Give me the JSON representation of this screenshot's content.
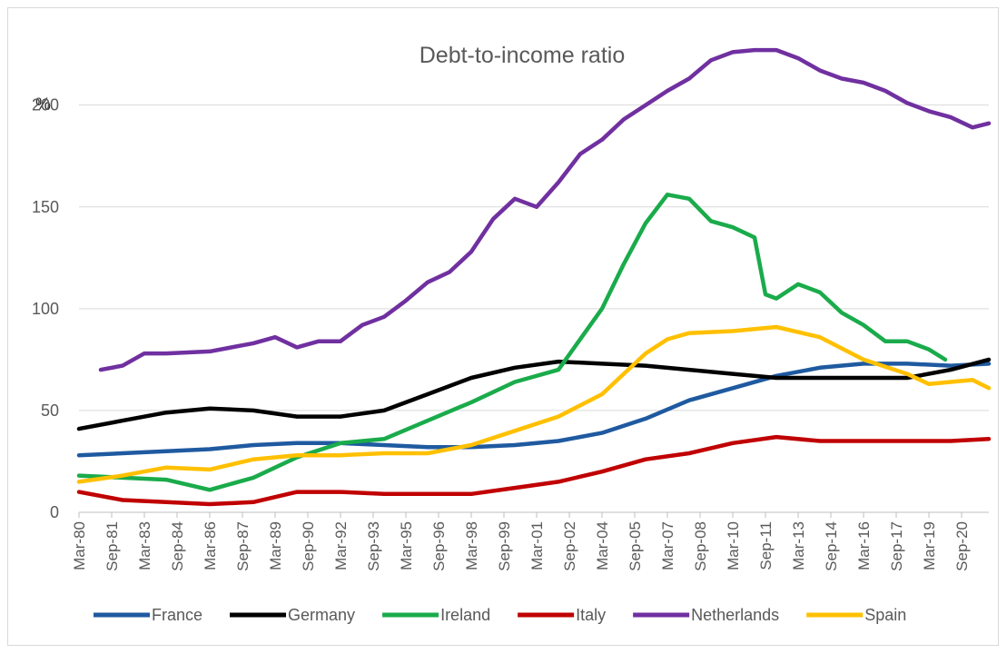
{
  "chart_data": {
    "type": "line",
    "title": "Debt-to-income ratio",
    "ylabel": "%",
    "xlabel": "",
    "ylim": [
      0,
      240
    ],
    "yticks": [
      0,
      50,
      100,
      150,
      200
    ],
    "x_start": "Mar-80",
    "x_end": "Dec-21",
    "x_tick_labels": [
      "Mar-80",
      "Sep-81",
      "Mar-83",
      "Sep-84",
      "Mar-86",
      "Sep-87",
      "Mar-89",
      "Sep-90",
      "Mar-92",
      "Sep-93",
      "Mar-95",
      "Sep-96",
      "Mar-98",
      "Sep-99",
      "Mar-01",
      "Sep-02",
      "Mar-04",
      "Sep-05",
      "Mar-07",
      "Sep-08",
      "Mar-10",
      "Sep-11",
      "Mar-13",
      "Sep-14",
      "Mar-16",
      "Sep-17",
      "Mar-19",
      "Sep-20"
    ],
    "grid": true,
    "legend_position": "bottom",
    "series": [
      {
        "name": "France",
        "color": "#1f5aa0",
        "x": [
          "Mar-80",
          "Mar-82",
          "Mar-84",
          "Mar-86",
          "Mar-88",
          "Mar-90",
          "Mar-92",
          "Mar-94",
          "Mar-96",
          "Mar-98",
          "Mar-00",
          "Mar-02",
          "Mar-04",
          "Mar-06",
          "Mar-08",
          "Mar-10",
          "Mar-12",
          "Mar-14",
          "Mar-16",
          "Mar-18",
          "Mar-20",
          "Dec-21"
        ],
        "values": [
          28,
          29,
          30,
          31,
          33,
          34,
          34,
          33,
          32,
          32,
          33,
          35,
          39,
          46,
          55,
          61,
          67,
          71,
          73,
          73,
          72,
          73
        ]
      },
      {
        "name": "Germany",
        "color": "#000000",
        "x": [
          "Mar-80",
          "Mar-82",
          "Mar-84",
          "Mar-86",
          "Mar-88",
          "Mar-90",
          "Mar-92",
          "Mar-94",
          "Mar-96",
          "Mar-98",
          "Mar-00",
          "Mar-02",
          "Mar-04",
          "Mar-06",
          "Mar-08",
          "Mar-10",
          "Mar-12",
          "Mar-14",
          "Mar-16",
          "Mar-18",
          "Mar-20",
          "Dec-21"
        ],
        "values": [
          41,
          45,
          49,
          51,
          50,
          47,
          47,
          50,
          58,
          66,
          71,
          74,
          73,
          72,
          70,
          68,
          66,
          66,
          66,
          66,
          70,
          75
        ]
      },
      {
        "name": "Ireland",
        "color": "#1aab4b",
        "x": [
          "Mar-80",
          "Mar-82",
          "Mar-84",
          "Mar-86",
          "Mar-88",
          "Mar-90",
          "Mar-92",
          "Mar-94",
          "Mar-96",
          "Mar-98",
          "Mar-00",
          "Mar-02",
          "Mar-04",
          "Mar-05",
          "Mar-06",
          "Mar-07",
          "Mar-08",
          "Mar-09",
          "Mar-10",
          "Mar-11",
          "Sep-11",
          "Mar-12",
          "Mar-13",
          "Mar-14",
          "Mar-15",
          "Mar-16",
          "Mar-17",
          "Mar-18",
          "Mar-19",
          "Dec-19"
        ],
        "values": [
          18,
          17,
          16,
          11,
          17,
          27,
          34,
          36,
          45,
          54,
          64,
          70,
          100,
          122,
          142,
          156,
          154,
          143,
          140,
          135,
          107,
          105,
          112,
          108,
          98,
          92,
          84,
          84,
          80,
          75
        ]
      },
      {
        "name": "Italy",
        "color": "#c00000",
        "x": [
          "Mar-80",
          "Mar-82",
          "Mar-84",
          "Mar-86",
          "Mar-88",
          "Mar-90",
          "Mar-92",
          "Mar-94",
          "Mar-96",
          "Mar-98",
          "Mar-00",
          "Mar-02",
          "Mar-04",
          "Mar-06",
          "Mar-08",
          "Mar-10",
          "Mar-12",
          "Mar-14",
          "Mar-16",
          "Mar-18",
          "Mar-20",
          "Dec-21"
        ],
        "values": [
          10,
          6,
          5,
          4,
          5,
          10,
          10,
          9,
          9,
          9,
          12,
          15,
          20,
          26,
          29,
          34,
          37,
          35,
          35,
          35,
          35,
          36
        ]
      },
      {
        "name": "Netherlands",
        "color": "#7030a0",
        "x": [
          "Mar-81",
          "Mar-82",
          "Mar-83",
          "Mar-84",
          "Mar-86",
          "Mar-88",
          "Mar-89",
          "Mar-90",
          "Mar-91",
          "Mar-92",
          "Mar-93",
          "Mar-94",
          "Mar-95",
          "Mar-96",
          "Mar-97",
          "Mar-98",
          "Mar-99",
          "Mar-00",
          "Mar-01",
          "Mar-02",
          "Mar-03",
          "Mar-04",
          "Mar-05",
          "Mar-06",
          "Mar-07",
          "Mar-08",
          "Mar-09",
          "Mar-10",
          "Mar-11",
          "Mar-12",
          "Mar-13",
          "Mar-14",
          "Mar-15",
          "Mar-16",
          "Mar-17",
          "Mar-18",
          "Mar-19",
          "Mar-20",
          "Mar-21",
          "Dec-21"
        ],
        "values": [
          70,
          72,
          78,
          78,
          79,
          83,
          86,
          81,
          84,
          84,
          92,
          96,
          104,
          113,
          118,
          128,
          144,
          154,
          150,
          162,
          176,
          183,
          193,
          200,
          207,
          213,
          222,
          226,
          227,
          227,
          223,
          217,
          213,
          211,
          207,
          201,
          197,
          194,
          189,
          191
        ]
      },
      {
        "name": "Spain",
        "color": "#ffc000",
        "x": [
          "Mar-80",
          "Mar-82",
          "Mar-84",
          "Mar-86",
          "Mar-88",
          "Mar-90",
          "Mar-92",
          "Mar-94",
          "Mar-96",
          "Mar-98",
          "Mar-00",
          "Mar-02",
          "Mar-04",
          "Mar-06",
          "Mar-07",
          "Mar-08",
          "Mar-10",
          "Mar-12",
          "Mar-14",
          "Mar-16",
          "Mar-18",
          "Mar-19",
          "Mar-20",
          "Mar-21",
          "Dec-21"
        ],
        "values": [
          15,
          18,
          22,
          21,
          26,
          28,
          28,
          29,
          29,
          33,
          40,
          47,
          58,
          78,
          85,
          88,
          89,
          91,
          86,
          75,
          68,
          63,
          64,
          65,
          61
        ]
      }
    ]
  }
}
